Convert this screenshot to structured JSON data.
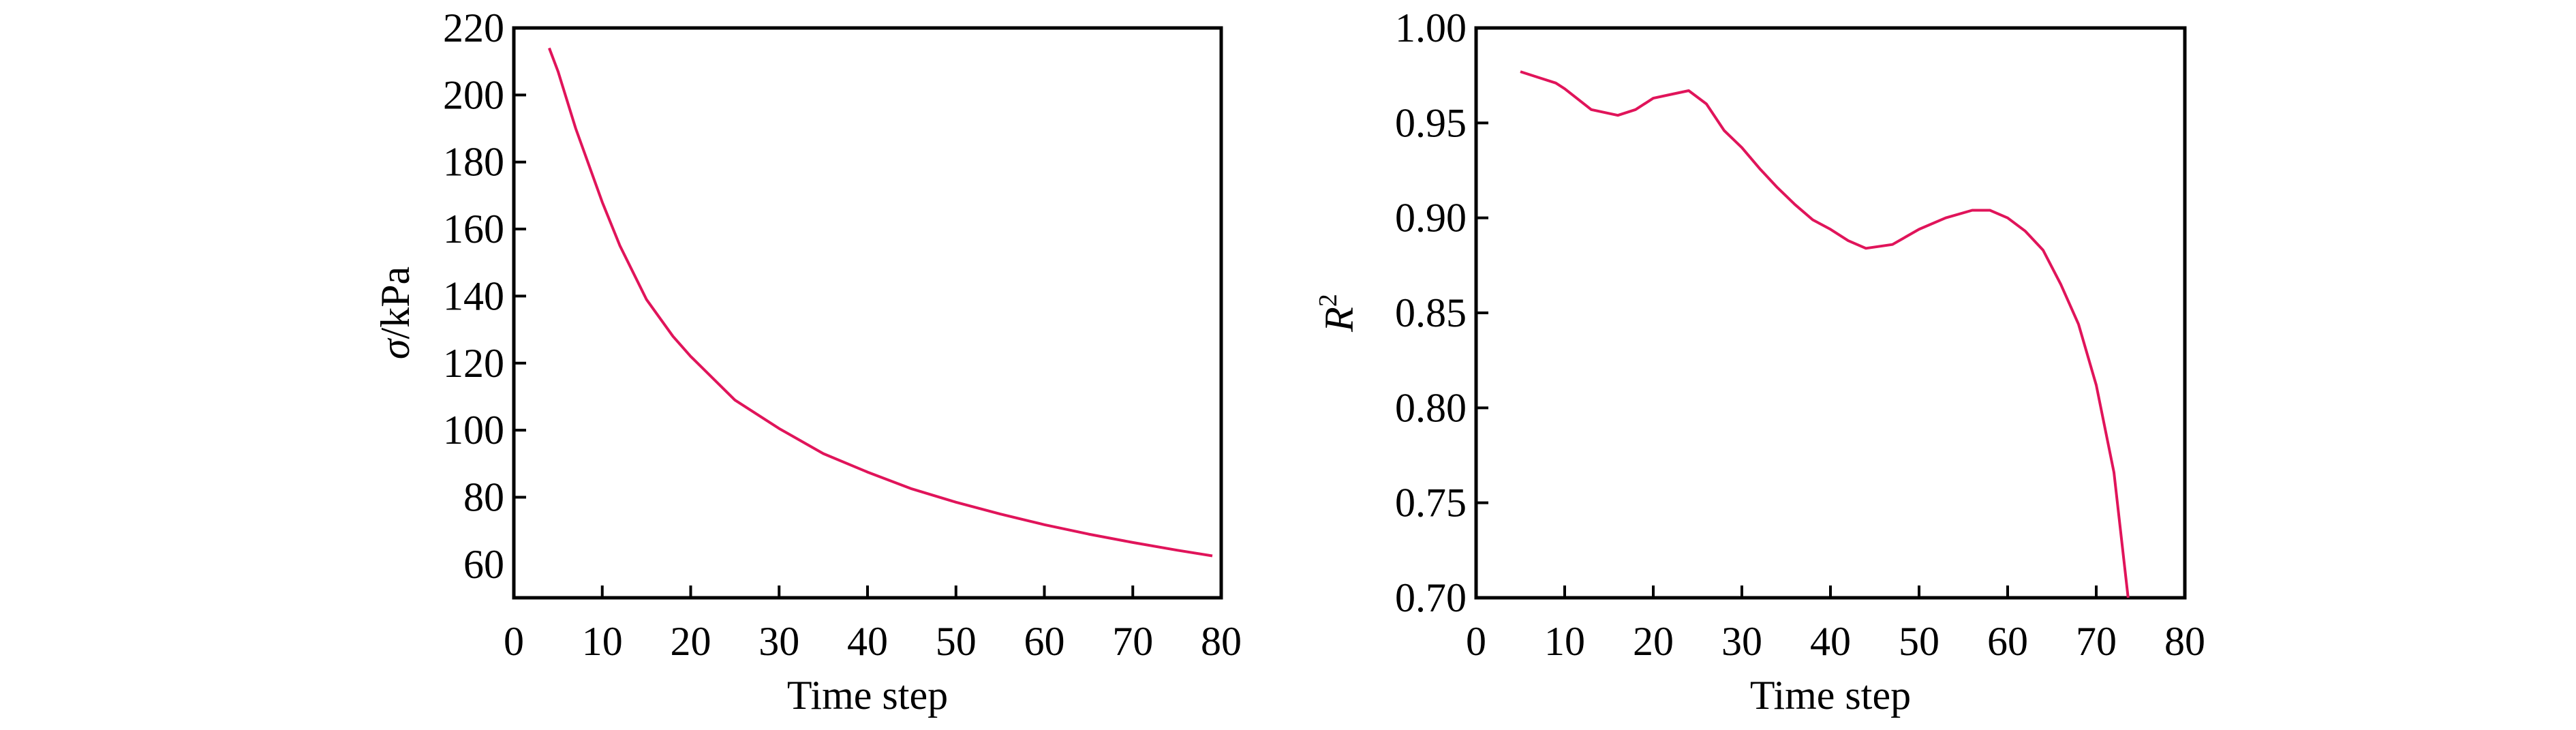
{
  "chart_data": [
    {
      "type": "line",
      "xlabel": "Time step",
      "ylabel": "σ/kPa",
      "ylabel_italic": "σ",
      "ylabel_rest": "/kPa",
      "xlim": [
        0,
        80
      ],
      "ylim": [
        50,
        220
      ],
      "xticks": [
        0,
        10,
        20,
        30,
        40,
        50,
        60,
        70,
        80
      ],
      "yticks": [
        60,
        80,
        100,
        120,
        140,
        160,
        180,
        200,
        220
      ],
      "ytick_labels": [
        "60",
        "80",
        "100",
        "120",
        "140",
        "160",
        "180",
        "200",
        "220"
      ],
      "grid": false,
      "line_color": "#e0145a",
      "x": [
        4,
        5,
        7,
        10,
        12,
        15,
        18,
        20,
        25,
        30,
        35,
        40,
        45,
        50,
        55,
        60,
        65,
        70,
        75,
        79
      ],
      "y": [
        214,
        207,
        190,
        168,
        155,
        139,
        128,
        122,
        109,
        100.5,
        93,
        87.5,
        82.5,
        78.5,
        75,
        71.8,
        69,
        66.5,
        64.2,
        62.5
      ]
    },
    {
      "type": "line",
      "xlabel": "Time step",
      "ylabel": "R²",
      "ylabel_italic": "R",
      "ylabel_sup": "2",
      "xlim": [
        0,
        80
      ],
      "ylim": [
        0.7,
        1.0
      ],
      "xticks": [
        0,
        10,
        20,
        30,
        40,
        50,
        60,
        70,
        80
      ],
      "yticks": [
        0.7,
        0.75,
        0.8,
        0.85,
        0.9,
        0.95,
        1.0
      ],
      "ytick_labels": [
        "0.70",
        "0.75",
        "0.80",
        "0.85",
        "0.90",
        "0.95",
        "1.00"
      ],
      "grid": false,
      "line_color": "#e0145a",
      "x": [
        5,
        7,
        9,
        10,
        13,
        16,
        18,
        20,
        22,
        24,
        26,
        28,
        30,
        32,
        34,
        36,
        38,
        40,
        42,
        44,
        47,
        50,
        53,
        56,
        58,
        60,
        62,
        64,
        66,
        68,
        70,
        72,
        73.6
      ],
      "y": [
        0.977,
        0.974,
        0.971,
        0.968,
        0.957,
        0.954,
        0.957,
        0.963,
        0.965,
        0.967,
        0.96,
        0.946,
        0.937,
        0.926,
        0.916,
        0.907,
        0.899,
        0.894,
        0.888,
        0.884,
        0.886,
        0.894,
        0.9,
        0.904,
        0.904,
        0.9,
        0.893,
        0.883,
        0.865,
        0.844,
        0.812,
        0.766,
        0.7
      ]
    }
  ]
}
